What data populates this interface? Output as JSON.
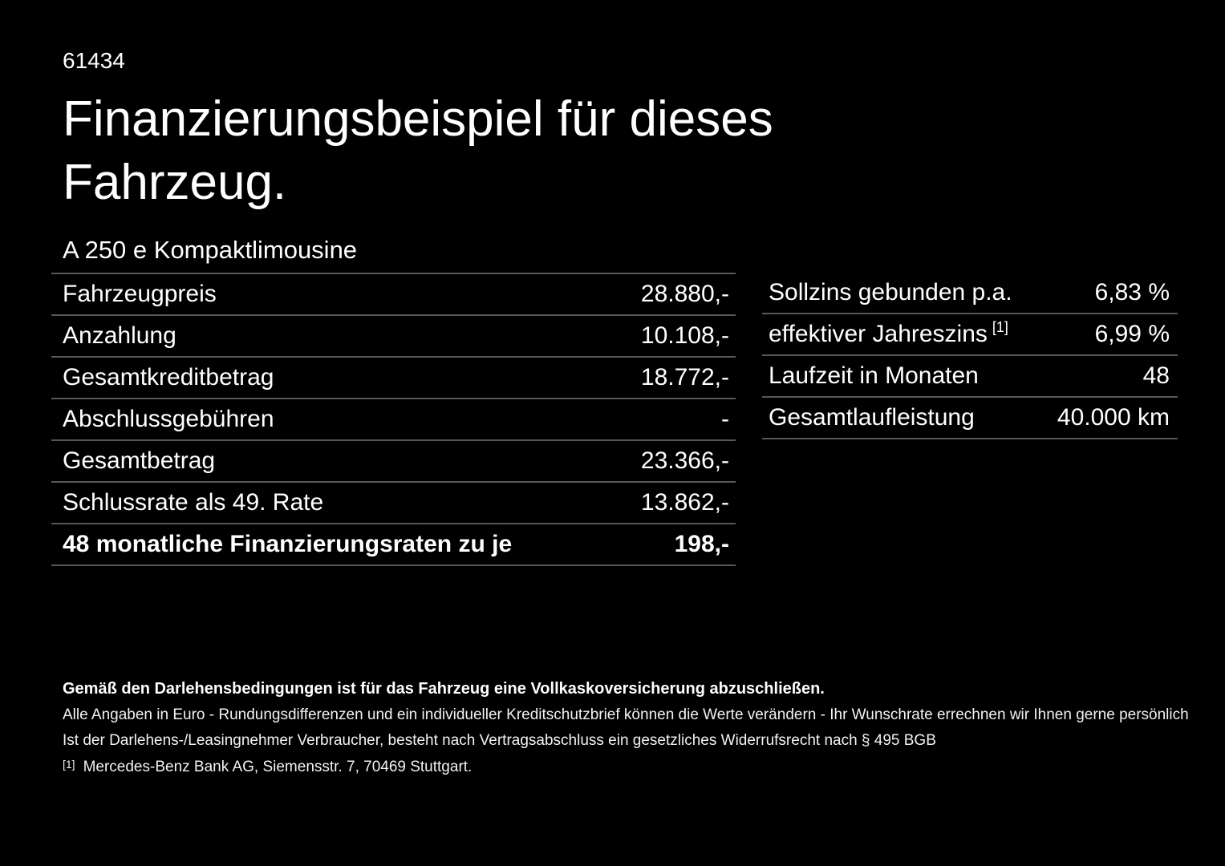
{
  "doc": {
    "number": "61434",
    "title": "Finanzierungsbeispiel für dieses Fahrzeug.",
    "model": "A 250 e Kompaktlimousine"
  },
  "finance_table": {
    "rows": [
      {
        "label": "Fahrzeugpreis",
        "value": "28.880,-"
      },
      {
        "label": "Anzahlung",
        "value": "10.108,-"
      },
      {
        "label": "Gesamtkreditbetrag",
        "value": "18.772,-"
      },
      {
        "label": "Abschlussgebühren",
        "value": "-"
      },
      {
        "label": "Gesamtbetrag",
        "value": "23.366,-"
      },
      {
        "label": "Schlussrate als 49. Rate",
        "value": "13.862,-"
      },
      {
        "label": "48 monatliche Finanzierungsraten zu je",
        "value": "198,-"
      }
    ]
  },
  "conditions_table": {
    "rows": [
      {
        "label": "Sollzins gebunden p.a.",
        "sup": "",
        "value": "6,83 %"
      },
      {
        "label": "effektiver Jahreszins",
        "sup": "[1]",
        "value": "6,99 %"
      },
      {
        "label": "Laufzeit in Monaten",
        "sup": "",
        "value": "48"
      },
      {
        "label": "Gesamtlaufleistung",
        "sup": "",
        "value": "40.000 km"
      }
    ]
  },
  "footnotes": {
    "insurance_note": "Gemäß den Darlehensbedingungen ist für das Fahrzeug eine Vollkaskoversicherung abzuschließen.",
    "disclaimer_line1": "Alle Angaben in Euro - Rundungsdifferenzen und ein individueller Kreditschutzbrief können die Werte verändern - Ihr Wunschrate errechnen wir Ihnen gerne persönlich",
    "disclaimer_line2": "Ist der Darlehens-/Leasingnehmer Verbraucher, besteht nach Vertragsabschluss ein gesetzliches Widerrufsrecht nach § 495 BGB",
    "reference_marker": "[1]",
    "reference_text": "Mercedes-Benz Bank AG, Siemensstr. 7, 70469 Stuttgart."
  },
  "colors": {
    "background": "#000000",
    "text": "#ffffff",
    "divider": "#585858"
  }
}
